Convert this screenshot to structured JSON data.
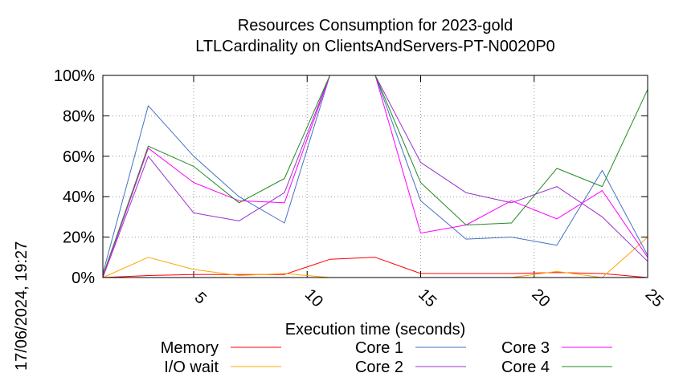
{
  "chart_data": {
    "type": "line",
    "title_line1": "Resources Consumption for 2023-gold",
    "title_line2": "LTLCardinality on ClientsAndServers-PT-N0020P0",
    "xlabel": "Execution time (seconds)",
    "ylabel": "",
    "side_note": "17/06/2024, 19:27",
    "xlim": [
      1,
      25
    ],
    "ylim": [
      0,
      100
    ],
    "x_ticks": [
      5,
      10,
      15,
      20,
      25
    ],
    "y_ticks": [
      0,
      20,
      40,
      60,
      80,
      100
    ],
    "y_tick_labels": [
      "0%",
      "20%",
      "40%",
      "60%",
      "80%",
      "100%"
    ],
    "grid": true,
    "legend_position": "bottom",
    "series": [
      {
        "name": "Memory",
        "color": "#ff0000",
        "points": [
          [
            1,
            0
          ],
          [
            3,
            1
          ],
          [
            5,
            1.5
          ],
          [
            7,
            1.5
          ],
          [
            9,
            1.5
          ],
          [
            11,
            9
          ],
          [
            13,
            10
          ],
          [
            15,
            2
          ],
          [
            17,
            2
          ],
          [
            19,
            2
          ],
          [
            21,
            2.5
          ],
          [
            23,
            2
          ],
          [
            25,
            0
          ]
        ]
      },
      {
        "name": "I/O wait",
        "color": "#ffa500",
        "points": [
          [
            1,
            0
          ],
          [
            3,
            10
          ],
          [
            5,
            4
          ],
          [
            7,
            1
          ],
          [
            9,
            2
          ],
          [
            11,
            0
          ],
          [
            13,
            0
          ],
          [
            15,
            0
          ],
          [
            17,
            0
          ],
          [
            19,
            0
          ],
          [
            21,
            3
          ],
          [
            23,
            0
          ],
          [
            25,
            20
          ]
        ]
      },
      {
        "name": "Core 1",
        "color": "#4472c4",
        "points": [
          [
            1,
            2
          ],
          [
            3,
            85
          ],
          [
            5,
            60
          ],
          [
            7,
            40
          ],
          [
            9,
            27
          ],
          [
            11,
            100
          ],
          [
            13,
            100
          ],
          [
            15,
            38
          ],
          [
            17,
            19
          ],
          [
            19,
            20
          ],
          [
            21,
            16
          ],
          [
            23,
            53
          ],
          [
            25,
            11
          ]
        ]
      },
      {
        "name": "Core 2",
        "color": "#9932cc",
        "points": [
          [
            1,
            0
          ],
          [
            3,
            60
          ],
          [
            5,
            32
          ],
          [
            7,
            28
          ],
          [
            9,
            42
          ],
          [
            11,
            100
          ],
          [
            13,
            100
          ],
          [
            15,
            57
          ],
          [
            17,
            42
          ],
          [
            19,
            37
          ],
          [
            21,
            45
          ],
          [
            23,
            30
          ],
          [
            25,
            8
          ]
        ]
      },
      {
        "name": "Core 3",
        "color": "#ff00ff",
        "points": [
          [
            1,
            0
          ],
          [
            3,
            64
          ],
          [
            5,
            47
          ],
          [
            7,
            38
          ],
          [
            9,
            37
          ],
          [
            11,
            100
          ],
          [
            13,
            100
          ],
          [
            15,
            22
          ],
          [
            17,
            26
          ],
          [
            19,
            38
          ],
          [
            21,
            29
          ],
          [
            23,
            43
          ],
          [
            25,
            10
          ]
        ]
      },
      {
        "name": "Core 4",
        "color": "#228b22",
        "points": [
          [
            1,
            1
          ],
          [
            3,
            65
          ],
          [
            5,
            55
          ],
          [
            7,
            37
          ],
          [
            9,
            49
          ],
          [
            11,
            100
          ],
          [
            13,
            100
          ],
          [
            15,
            47
          ],
          [
            17,
            26
          ],
          [
            19,
            27
          ],
          [
            21,
            54
          ],
          [
            23,
            45
          ],
          [
            25,
            93
          ]
        ]
      }
    ]
  }
}
